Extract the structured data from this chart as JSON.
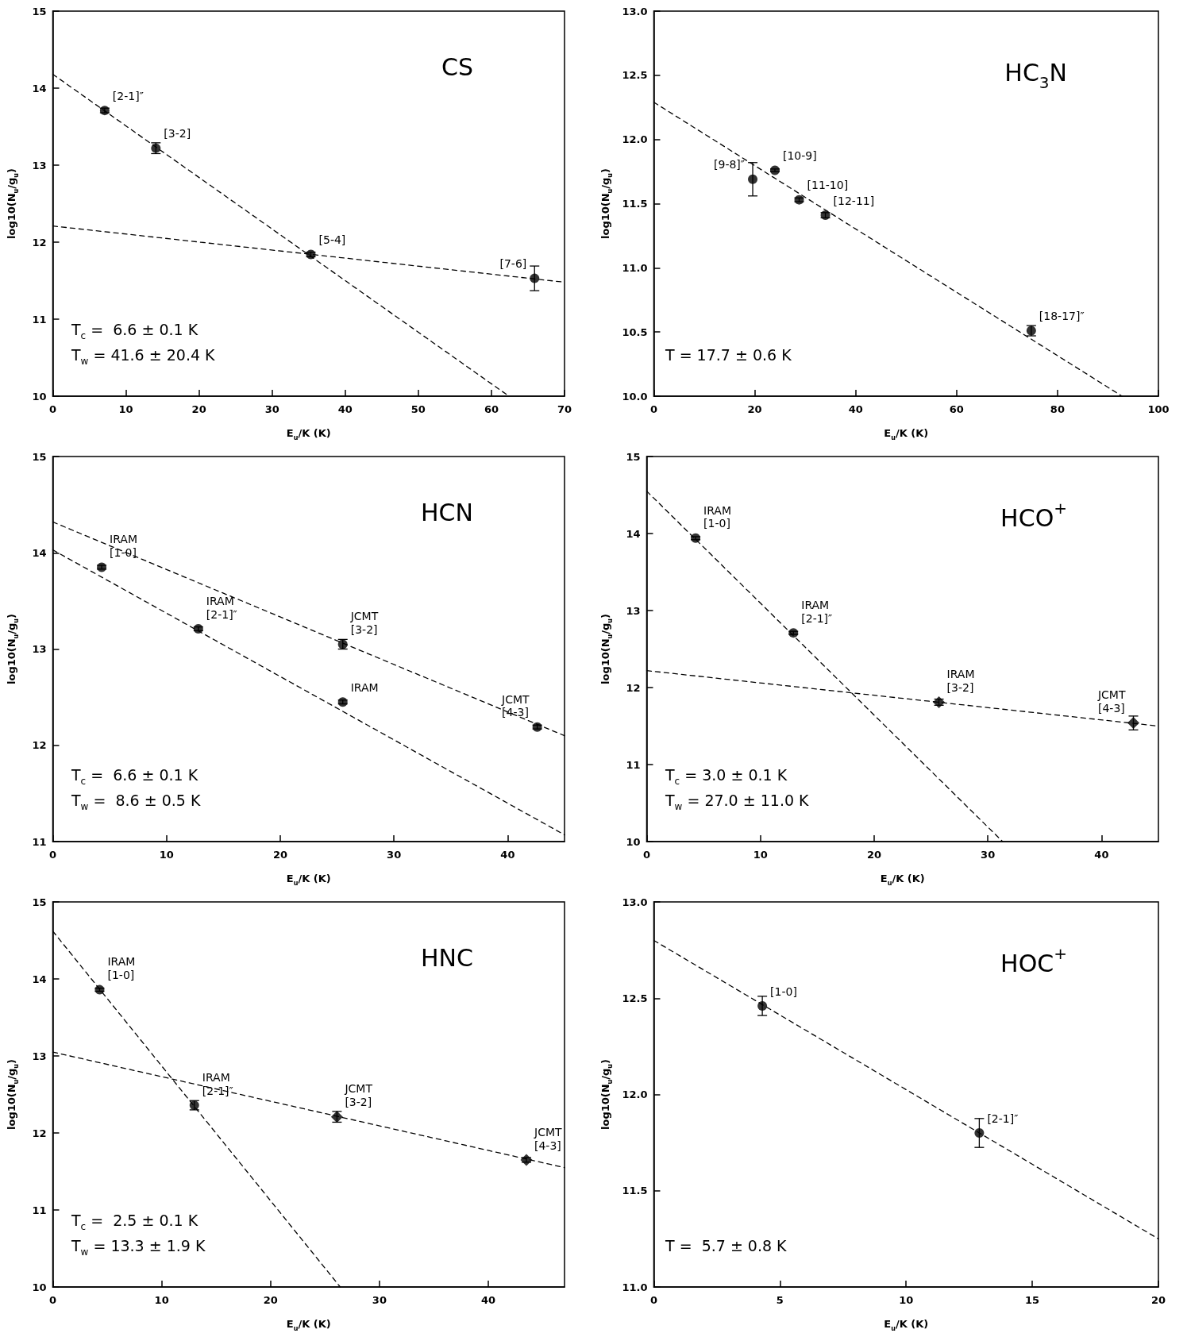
{
  "chart_data": [
    {
      "type": "scatter",
      "title": "CS",
      "xlabel": "E$_{u}$/K (K)",
      "ylabel": "log10(N$_{u}$/g$_{u}$)",
      "xlim": [
        0,
        70
      ],
      "ylim": [
        10,
        15
      ],
      "xticks": [
        0,
        10,
        20,
        30,
        40,
        50,
        60,
        70
      ],
      "yticks": [
        10,
        11,
        12,
        13,
        14,
        15
      ],
      "series": [
        {
          "type": "scatter",
          "color": "#000000",
          "marker": "circle",
          "x": [
            7.1,
            14.1,
            35.3,
            65.9
          ],
          "values": [
            13.71,
            13.22,
            11.84,
            11.53
          ],
          "errors": [
            0.03,
            0.07,
            0.03,
            0.16
          ]
        },
        {
          "type": "line",
          "color": "#000000",
          "marker": "none",
          "line_style": "dashed",
          "x": [
            0,
            62.4
          ],
          "values": [
            14.18,
            10.0
          ]
        },
        {
          "type": "line",
          "color": "#000000",
          "marker": "none",
          "line_style": "dashed",
          "x": [
            0,
            70
          ],
          "values": [
            12.21,
            11.48
          ]
        }
      ],
      "annotations": [
        {
          "text": "[2-1]″",
          "x": 7.1,
          "y": 13.71
        },
        {
          "text": "[3-2]",
          "x": 14.1,
          "y": 13.22
        },
        {
          "text": "[5-4]",
          "x": 35.3,
          "y": 11.84
        },
        {
          "text": "[7-6]",
          "x": 65.9,
          "y": 11.53
        },
        "T$_{c}$ =  6.6 ± 0.1 K",
        "T$_{w}$ = 41.6 ± 20.4 K"
      ]
    },
    {
      "type": "scatter",
      "title": "HC$_{3}$N",
      "xlabel": "E$_{u}$/K (K)",
      "ylabel": "log10(N$_{u}$/g$_{u}$)",
      "xlim": [
        0,
        100
      ],
      "ylim": [
        10,
        13
      ],
      "xticks": [
        0,
        20,
        40,
        60,
        80,
        100
      ],
      "yticks": [
        {
          "value": 10,
          "label": "10.0"
        },
        {
          "value": 10.5,
          "label": "10.5"
        },
        {
          "value": 11,
          "label": "11.0"
        },
        {
          "value": 11.5,
          "label": "11.5"
        },
        {
          "value": 12,
          "label": "12.0"
        },
        {
          "value": 12.5,
          "label": "12.5"
        },
        {
          "value": 13,
          "label": "13.0"
        }
      ],
      "series": [
        {
          "type": "scatter",
          "color": "#000000",
          "marker": "circle",
          "x": [
            19.6,
            24.0,
            28.8,
            34.0,
            74.8
          ],
          "values": [
            11.69,
            11.76,
            11.53,
            11.41,
            10.51
          ],
          "errors": [
            0.13,
            0.01,
            0.015,
            0.02,
            0.04
          ]
        },
        {
          "type": "line",
          "color": "#000000",
          "marker": "none",
          "line_style": "dashed",
          "x": [
            0,
            92.8
          ],
          "values": [
            12.29,
            10.0
          ]
        }
      ],
      "annotations": [
        {
          "text": "[9-8]″",
          "x": 19.6,
          "y": 11.69
        },
        {
          "text": "[10-9]",
          "x": 24.0,
          "y": 11.76
        },
        {
          "text": "[11-10]",
          "x": 28.8,
          "y": 11.53
        },
        {
          "text": "[12-11]",
          "x": 34.0,
          "y": 11.41
        },
        {
          "text": "[18-17]″",
          "x": 74.8,
          "y": 10.51
        },
        "T = 17.7 ± 0.6 K"
      ]
    },
    {
      "type": "scatter",
      "title": "HCN",
      "xlabel": "E$_{u}$/K (K)",
      "ylabel": "log10(N$_{u}$/g$_{u}$)",
      "xlim": [
        0,
        45
      ],
      "ylim": [
        11,
        15
      ],
      "xticks": [
        0,
        10,
        20,
        30,
        40
      ],
      "yticks": [
        11,
        12,
        13,
        14,
        15
      ],
      "series": [
        {
          "type": "scatter",
          "color": "#000000",
          "marker": "circle",
          "x": [
            4.3,
            12.8,
            25.5,
            25.5,
            42.6
          ],
          "values": [
            13.85,
            13.21,
            13.05,
            12.45,
            12.19
          ],
          "errors": [
            0.02,
            0.02,
            0.05,
            0.02,
            0.02
          ]
        },
        {
          "type": "line",
          "color": "#000000",
          "marker": "none",
          "line_style": "dashed",
          "x": [
            0,
            45
          ],
          "values": [
            14.32,
            12.1
          ]
        },
        {
          "type": "line",
          "color": "#000000",
          "marker": "none",
          "line_style": "dashed",
          "x": [
            0,
            45
          ],
          "values": [
            14.03,
            11.07
          ]
        }
      ],
      "annotations": [
        {
          "text": "IRAM\n[1-0]",
          "x": 4.3,
          "y": 13.85
        },
        {
          "text": "IRAM\n[2-1]″",
          "x": 12.8,
          "y": 13.21
        },
        {
          "text": "JCMT\n[3-2]",
          "x": 25.5,
          "y": 13.05
        },
        {
          "text": "IRAM",
          "x": 25.5,
          "y": 12.45
        },
        {
          "text": "JCMT\n[4-3]",
          "x": 42.6,
          "y": 12.19
        },
        "T$_{c}$ =  6.6 ± 0.1 K",
        "T$_{w}$ =  8.6 ± 0.5 K"
      ]
    },
    {
      "type": "scatter",
      "title": "HCO$^{+}$",
      "xlabel": "E$_{u}$/K (K)",
      "ylabel": "log10(N$_{u}$/g$_{u}$)",
      "xlim": [
        0,
        45
      ],
      "ylim": [
        10,
        15
      ],
      "xticks": [
        0,
        10,
        20,
        30,
        40
      ],
      "yticks": [
        10,
        11,
        12,
        13,
        14,
        15
      ],
      "series": [
        {
          "type": "scatter",
          "color": "#000000",
          "marker": "circle",
          "x": [
            4.3,
            12.9
          ],
          "values": [
            13.94,
            12.71
          ],
          "errors": [
            0.02,
            0.02
          ]
        },
        {
          "type": "scatter",
          "color": "#000000",
          "marker": "diamond",
          "x": [
            25.7,
            42.8
          ],
          "values": [
            11.81,
            11.54
          ],
          "errors": [
            0.04,
            0.09
          ]
        },
        {
          "type": "line",
          "color": "#000000",
          "marker": "none",
          "line_style": "dashed",
          "x": [
            0,
            31.3
          ],
          "values": [
            14.55,
            10.0
          ]
        },
        {
          "type": "line",
          "color": "#000000",
          "marker": "none",
          "line_style": "dashed",
          "x": [
            0,
            45
          ],
          "values": [
            12.22,
            11.5
          ]
        }
      ],
      "annotations": [
        {
          "text": "IRAM\n[1-0]",
          "x": 4.3,
          "y": 13.94
        },
        {
          "text": "IRAM\n[2-1]″",
          "x": 12.9,
          "y": 12.71
        },
        {
          "text": "IRAM\n[3-2]",
          "x": 25.7,
          "y": 11.81
        },
        {
          "text": "JCMT\n[4-3]",
          "x": 42.8,
          "y": 11.54
        },
        "T$_{c}$ = 3.0 ± 0.1 K",
        "T$_{w}$ = 27.0 ± 11.0 K"
      ]
    },
    {
      "type": "scatter",
      "title": "HNC",
      "xlabel": "E$_{u}$/K (K)",
      "ylabel": "log10(N$_{u}$/g$_{u}$)",
      "xlim": [
        0,
        47
      ],
      "ylim": [
        10,
        15
      ],
      "xticks": [
        0,
        10,
        20,
        30,
        40
      ],
      "yticks": [
        10,
        11,
        12,
        13,
        14,
        15
      ],
      "series": [
        {
          "type": "scatter",
          "color": "#000000",
          "marker": "circle",
          "x": [
            4.3,
            13.0
          ],
          "values": [
            13.86,
            12.36
          ],
          "errors": [
            0.02,
            0.06
          ]
        },
        {
          "type": "scatter",
          "color": "#000000",
          "marker": "diamond",
          "x": [
            26.1,
            43.5
          ],
          "values": [
            12.21,
            11.65
          ],
          "errors": [
            0.07,
            0.03
          ]
        },
        {
          "type": "line",
          "color": "#000000",
          "marker": "none",
          "line_style": "dashed",
          "x": [
            0,
            26.4
          ],
          "values": [
            14.62,
            10.0
          ]
        },
        {
          "type": "line",
          "color": "#000000",
          "marker": "none",
          "line_style": "dashed",
          "x": [
            0,
            47
          ],
          "values": [
            13.05,
            11.55
          ]
        }
      ],
      "annotations": [
        {
          "text": "IRAM\n[1-0]",
          "x": 4.3,
          "y": 13.86
        },
        {
          "text": "IRAM\n[2-1]″",
          "x": 13.0,
          "y": 12.36
        },
        {
          "text": "JCMT\n[3-2]",
          "x": 26.1,
          "y": 12.21
        },
        {
          "text": "JCMT\n[4-3]",
          "x": 43.5,
          "y": 11.65
        },
        "T$_{c}$ =  2.5 ± 0.1 K",
        "T$_{w}$ = 13.3 ± 1.9 K"
      ]
    },
    {
      "type": "scatter",
      "title": "HOC$^{+}$",
      "xlabel": "E$_{u}$/K (K)",
      "ylabel": "log10(N$_{u}$/g$_{u}$)",
      "xlim": [
        0,
        20
      ],
      "ylim": [
        11,
        13
      ],
      "xticks": [
        0,
        5,
        10,
        15,
        20
      ],
      "yticks": [
        {
          "value": 11,
          "label": "11.0"
        },
        {
          "value": 11.5,
          "label": "11.5"
        },
        {
          "value": 12,
          "label": "12.0"
        },
        {
          "value": 12.5,
          "label": "12.5"
        },
        {
          "value": 13,
          "label": "13.0"
        }
      ],
      "series": [
        {
          "type": "scatter",
          "color": "#000000",
          "marker": "circle",
          "x": [
            4.3,
            12.9
          ],
          "values": [
            12.46,
            11.8
          ],
          "errors": [
            0.05,
            0.075
          ]
        },
        {
          "type": "line",
          "color": "#000000",
          "marker": "none",
          "line_style": "dashed",
          "x": [
            0,
            20
          ],
          "values": [
            12.8,
            11.25
          ]
        }
      ],
      "annotations": [
        {
          "text": "[1-0]",
          "x": 4.3,
          "y": 12.46
        },
        {
          "text": "[2-1]″",
          "x": 12.9,
          "y": 11.8
        },
        "T =  5.7 ± 0.8 K"
      ]
    }
  ]
}
